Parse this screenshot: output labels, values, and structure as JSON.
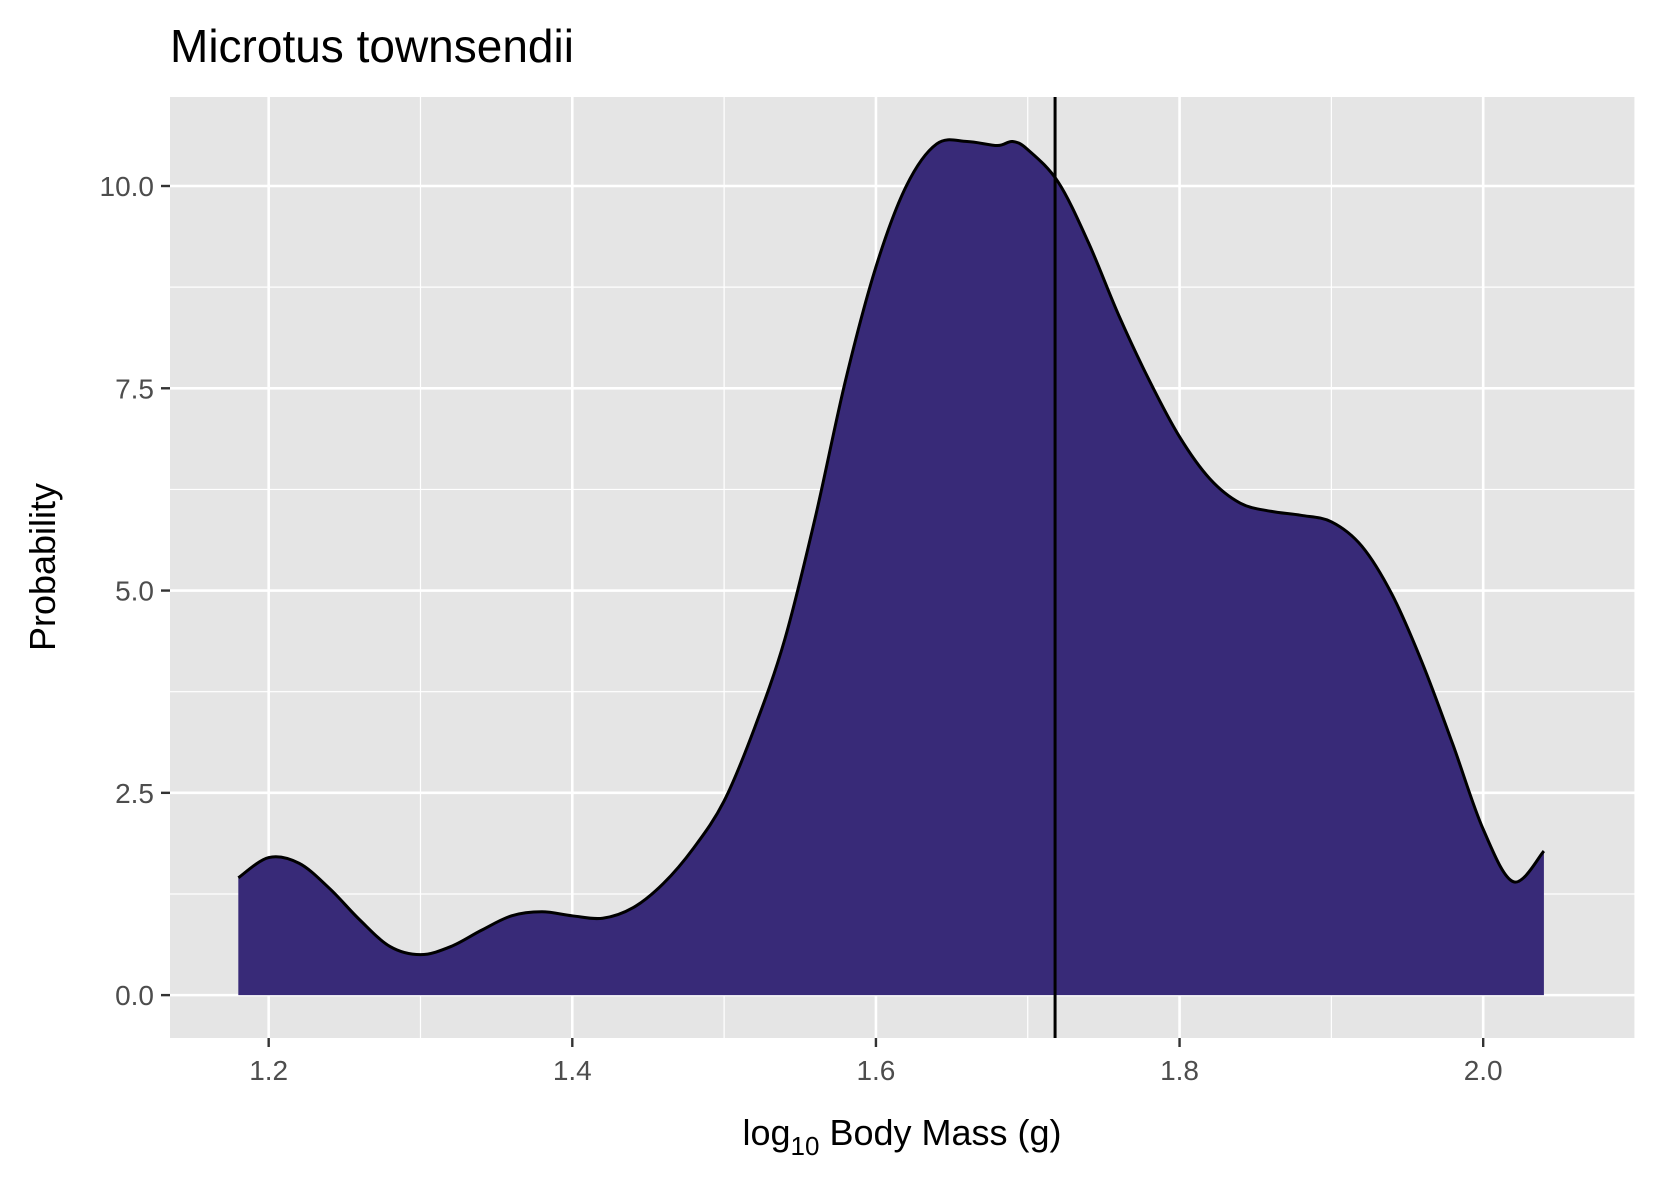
{
  "chart_data": {
    "type": "area",
    "title": "Microtus townsendii",
    "xlabel": {
      "prefix": "log",
      "subscript": "10",
      "suffix": " Body Mass (g)"
    },
    "ylabel": "Probability",
    "xlim": [
      1.135,
      2.1
    ],
    "ylim": [
      -0.53,
      11.1
    ],
    "x_ticks": [
      1.2,
      1.4,
      1.6,
      1.8,
      2.0
    ],
    "x_tick_labels": [
      "1.2",
      "1.4",
      "1.6",
      "1.8",
      "2.0"
    ],
    "x_minor_ticks": [
      1.3,
      1.5,
      1.7,
      1.9,
      2.1
    ],
    "y_ticks": [
      0.0,
      2.5,
      5.0,
      7.5,
      10.0
    ],
    "y_tick_labels": [
      "0.0",
      "2.5",
      "5.0",
      "7.5",
      "10.0"
    ],
    "y_minor_ticks": [
      1.25,
      3.75,
      6.25,
      8.75
    ],
    "grid": true,
    "series": [
      {
        "x": [
          1.18,
          1.2,
          1.22,
          1.24,
          1.26,
          1.28,
          1.3,
          1.32,
          1.34,
          1.36,
          1.38,
          1.4,
          1.42,
          1.44,
          1.46,
          1.48,
          1.5,
          1.52,
          1.54,
          1.56,
          1.58,
          1.6,
          1.62,
          1.64,
          1.66,
          1.68,
          1.69,
          1.7,
          1.72,
          1.74,
          1.76,
          1.78,
          1.8,
          1.82,
          1.84,
          1.86,
          1.88,
          1.9,
          1.92,
          1.94,
          1.96,
          1.98,
          2.0,
          2.02,
          2.04
        ],
        "y": [
          1.45,
          1.7,
          1.63,
          1.32,
          0.93,
          0.6,
          0.5,
          0.6,
          0.8,
          0.98,
          1.03,
          0.98,
          0.95,
          1.08,
          1.38,
          1.82,
          2.4,
          3.3,
          4.4,
          5.9,
          7.6,
          9.0,
          10.0,
          10.52,
          10.55,
          10.5,
          10.55,
          10.45,
          10.05,
          9.3,
          8.4,
          7.6,
          6.9,
          6.38,
          6.08,
          5.98,
          5.93,
          5.85,
          5.55,
          4.95,
          4.1,
          3.1,
          2.05,
          1.4,
          1.78
        ]
      }
    ],
    "vline_x": 1.718,
    "colors": {
      "fill": "#382a78",
      "outline": "#000000",
      "panel_background": "#e5e5e5",
      "grid": "#ffffff",
      "tick_text": "#4d4d4d"
    }
  }
}
